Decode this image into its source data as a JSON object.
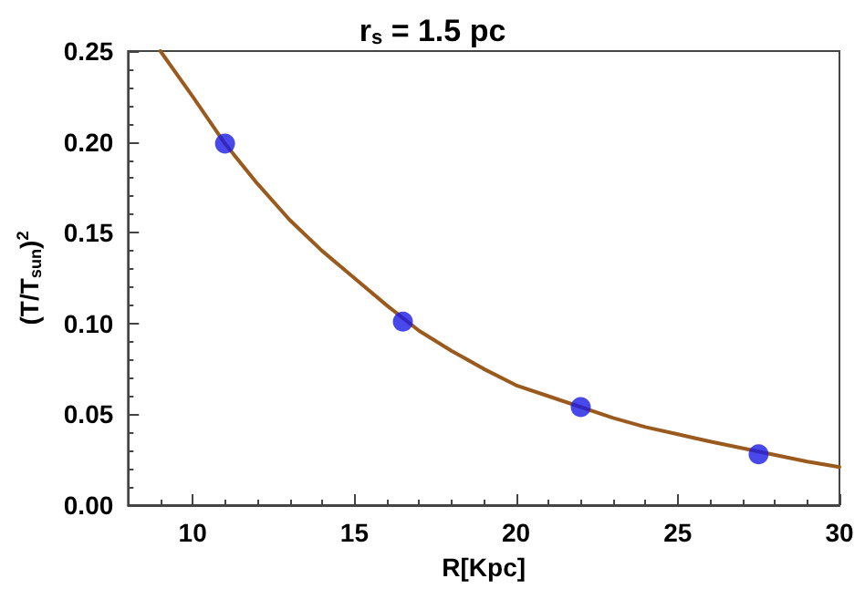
{
  "chart_data": {
    "type": "scatter",
    "title": "r$_{s}$ = 1.5 pc",
    "xlabel": "R[Kpc]",
    "ylabel": "(T/T$_{sun}$)$^{2}$",
    "xlim": [
      8,
      30
    ],
    "xticks": [
      10,
      15,
      20,
      25,
      30
    ],
    "ylim": [
      0,
      0.25
    ],
    "yticks": [
      {
        "value": 0,
        "label": "0.00"
      },
      {
        "value": 0.05,
        "label": "0.05"
      },
      {
        "value": 0.1,
        "label": "0.10"
      },
      {
        "value": 0.15,
        "label": "0.15"
      },
      {
        "value": 0.2,
        "label": "0.20"
      },
      {
        "value": 0.25,
        "label": "0.25"
      }
    ],
    "grid": false,
    "marker": "circle",
    "series": [
      {
        "type": "line",
        "color": "#9a5a1e",
        "marker": "none",
        "line_style": "solid",
        "x": [
          9,
          10,
          11,
          12,
          13,
          14,
          15,
          16,
          17,
          18,
          19,
          20,
          21,
          23,
          24,
          25,
          26,
          29,
          30
        ],
        "values": [
          0.25,
          0.225,
          0.199,
          0.177,
          0.157,
          0.14,
          0.125,
          0.11,
          0.096,
          0.085,
          0.075,
          0.066,
          0.06,
          0.048,
          0.043,
          0.039,
          0.035,
          0.024,
          0.021
        ]
      },
      {
        "color": "#1a1ae6",
        "x": [
          11,
          16.5,
          22,
          27.5
        ],
        "values": [
          0.199,
          0.101,
          0.054,
          0.028
        ]
      }
    ]
  }
}
